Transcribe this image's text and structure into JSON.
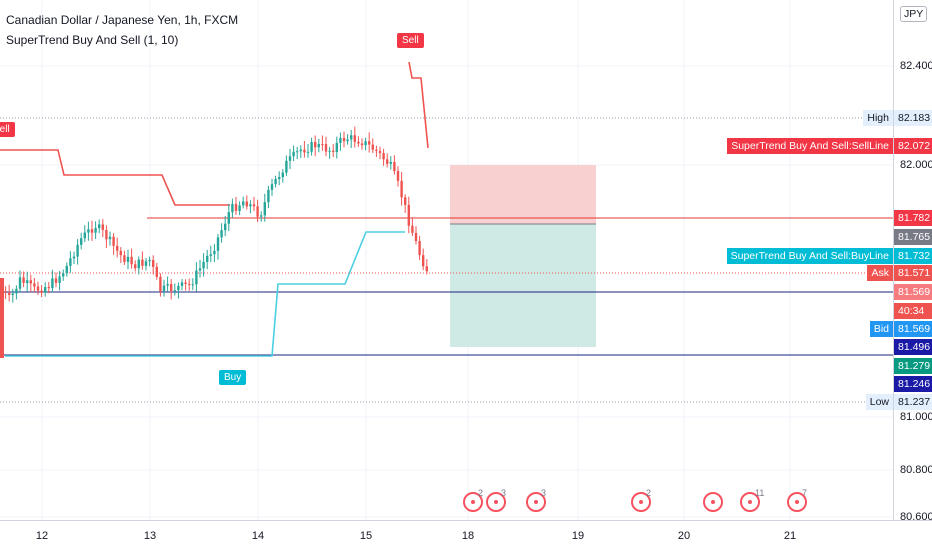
{
  "legend": {
    "title": "Canadian Dollar / Japanese Yen, 1h, FXCM",
    "indicator": "SuperTrend Buy And Sell (1, 10)"
  },
  "currency": "JPY",
  "price_axis": {
    "ticks": [
      "82.400",
      "82.000",
      "81.000",
      "80.800",
      "80.600"
    ],
    "tick_values": [
      82.4,
      82.0,
      81.0,
      80.8,
      80.6
    ]
  },
  "time_axis": {
    "ticks": [
      "12",
      "13",
      "14",
      "15",
      "18",
      "19",
      "20",
      "21"
    ]
  },
  "price_tags": [
    {
      "label": "High",
      "value": "82.183",
      "price": 82.183,
      "style": "plain"
    },
    {
      "label": "SuperTrend Buy And Sell:SellLine",
      "value": "82.072",
      "price": 82.072,
      "style": "red"
    },
    {
      "label": "",
      "value": "81.782",
      "price": 81.782,
      "style": "red"
    },
    {
      "label": "",
      "value": "81.765",
      "price": 81.765,
      "style": "gray"
    },
    {
      "label": "SuperTrend Buy And Sell:BuyLine",
      "value": "81.732",
      "price": 81.732,
      "style": "teal"
    },
    {
      "label": "Ask",
      "value": "81.571",
      "price": 81.571,
      "style": "pink"
    },
    {
      "label": "",
      "value": "81.569",
      "price": 81.569,
      "style": "pink2"
    },
    {
      "label": "",
      "value": "40:34",
      "price": 81.535,
      "style": "countdown"
    },
    {
      "label": "Bid",
      "value": "81.569",
      "price": 81.5,
      "style": "blue"
    },
    {
      "label": "",
      "value": "81.496",
      "price": 81.43,
      "style": "navy"
    },
    {
      "label": "",
      "value": "81.279",
      "price": 81.37,
      "style": "green"
    },
    {
      "label": "",
      "value": "81.246",
      "price": 81.31,
      "style": "navy"
    },
    {
      "label": "Low",
      "value": "81.237",
      "price": 81.237,
      "style": "plain"
    }
  ],
  "signals": [
    {
      "text": "Sell",
      "kind": "sell-top"
    },
    {
      "text": "Sell",
      "kind": "sell-left"
    },
    {
      "text": "Buy",
      "kind": "buy"
    }
  ],
  "events": [
    {
      "count": "2"
    },
    {
      "count": "3"
    },
    {
      "count": "3"
    },
    {
      "count": "2"
    },
    {
      "count": ""
    },
    {
      "count": "11"
    },
    {
      "count": "7"
    }
  ],
  "colors": {
    "up": "#26a69a",
    "down": "#ef5350",
    "sell_line": "#ef5350",
    "buy_line": "#4dd0e1",
    "position_red": "#f8d0d0",
    "position_green": "#cfe9e4",
    "hline_red": "#e53935",
    "hline_navy": "#1a237e"
  },
  "chart_data": {
    "type": "candlestick",
    "symbol": "CADJPY",
    "timeframe": "1h",
    "high": 82.183,
    "low": 81.237,
    "sell_line": 82.072,
    "buy_line": 81.732,
    "ask": 81.571,
    "bid": 81.569
  }
}
